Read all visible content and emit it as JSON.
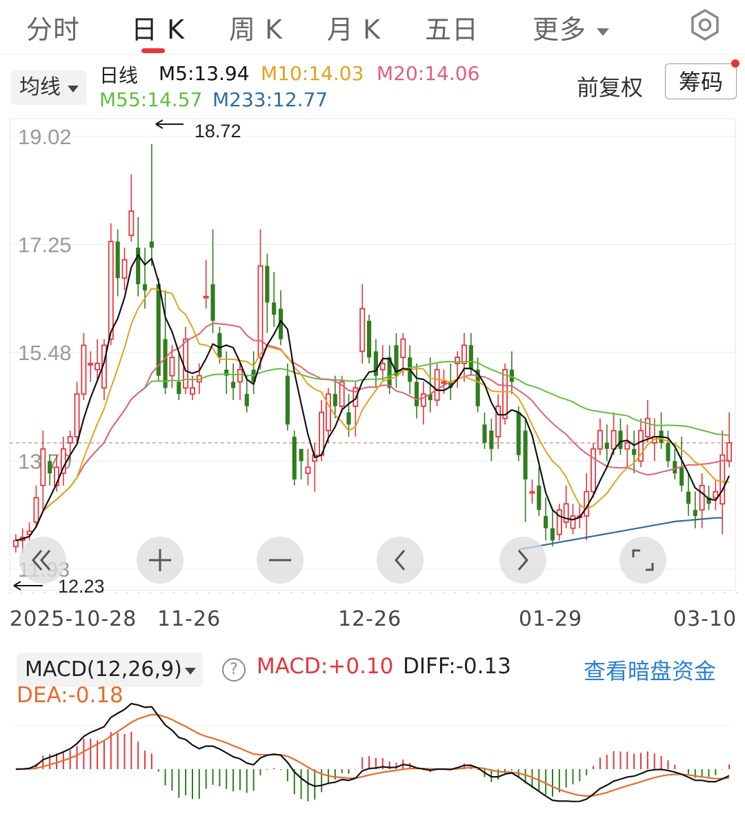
{
  "tabs": [
    {
      "label": "分时"
    },
    {
      "label": "日 K"
    },
    {
      "label": "周 K"
    },
    {
      "label": "月 K"
    },
    {
      "label": "五日"
    },
    {
      "label": "更多"
    }
  ],
  "toolbar": {
    "ma_select": "均线",
    "period": "日线",
    "m5": "M5:13.94",
    "m10": "M10:14.03",
    "m20": "M20:14.06",
    "m55": "M55:14.57",
    "m233": "M233:12.77",
    "adjust": "前复权",
    "chips_button": "筹码"
  },
  "colors": {
    "up": "#e8333a",
    "down": "#2f7d1e",
    "m5": "#111111",
    "m10": "#e3a21a",
    "m20": "#e0607a",
    "m55": "#5fbf3e",
    "m233": "#2d6c9e",
    "dea": "#e86b2c"
  },
  "chart_data": {
    "type": "candlestick",
    "y_ticks": [
      "19.02",
      "17.25",
      "15.48",
      "13.70",
      "11.93"
    ],
    "ylim": [
      11.93,
      19.02
    ],
    "x_ticks": [
      "2025-10-28",
      "11-26",
      "12-26",
      "01-29",
      "03-10"
    ],
    "max_label": "18.72",
    "min_label": "12.23",
    "last_close": 14.0,
    "candles": [
      [
        12.3,
        12.5,
        12.2,
        12.4
      ],
      [
        12.4,
        12.6,
        12.2,
        12.45
      ],
      [
        12.5,
        12.7,
        12.4,
        12.55
      ],
      [
        12.7,
        13.3,
        12.6,
        13.1
      ],
      [
        13.3,
        14.2,
        12.9,
        13.9
      ],
      [
        13.7,
        13.8,
        13.3,
        13.5
      ],
      [
        13.3,
        13.8,
        13.2,
        13.6
      ],
      [
        13.5,
        14.1,
        13.3,
        13.9
      ],
      [
        14.0,
        14.2,
        13.7,
        14.1
      ],
      [
        14.1,
        15.0,
        14.0,
        14.8
      ],
      [
        14.8,
        15.8,
        14.7,
        15.6
      ],
      [
        15.3,
        15.5,
        15.0,
        15.3
      ],
      [
        15.2,
        15.7,
        15.0,
        15.3
      ],
      [
        14.9,
        15.7,
        14.7,
        15.6
      ],
      [
        15.7,
        17.6,
        15.6,
        17.3
      ],
      [
        17.3,
        17.5,
        16.4,
        16.7
      ],
      [
        16.7,
        17.2,
        16.5,
        17.0
      ],
      [
        17.4,
        18.4,
        17.3,
        17.8
      ],
      [
        17.2,
        17.7,
        16.4,
        16.6
      ],
      [
        16.6,
        17.2,
        16.2,
        16.5
      ],
      [
        17.3,
        18.9,
        16.9,
        17.2
      ],
      [
        16.6,
        16.7,
        15.0,
        15.1
      ],
      [
        15.7,
        16.5,
        14.8,
        14.9
      ],
      [
        15.1,
        15.6,
        14.9,
        15.4
      ],
      [
        15.0,
        15.5,
        14.7,
        14.8
      ],
      [
        14.9,
        15.9,
        14.8,
        15.7
      ],
      [
        14.8,
        15.1,
        14.7,
        14.9
      ],
      [
        15.0,
        15.3,
        14.8,
        15.1
      ],
      [
        16.4,
        17.0,
        16.2,
        16.4
      ],
      [
        16.6,
        17.5,
        15.8,
        16.0
      ],
      [
        15.8,
        15.9,
        15.3,
        15.4
      ],
      [
        15.2,
        15.5,
        14.8,
        15.1
      ],
      [
        15.0,
        15.3,
        14.7,
        14.9
      ],
      [
        15.0,
        15.3,
        14.7,
        15.2
      ],
      [
        14.8,
        15.1,
        14.5,
        14.6
      ],
      [
        15.2,
        15.5,
        14.8,
        15.0
      ],
      [
        15.4,
        17.5,
        15.2,
        16.9
      ],
      [
        16.9,
        17.1,
        15.8,
        16.3
      ],
      [
        16.3,
        16.8,
        15.9,
        16.1
      ],
      [
        16.2,
        16.5,
        15.6,
        15.7
      ],
      [
        15.1,
        15.3,
        14.2,
        14.3
      ],
      [
        14.1,
        14.2,
        13.3,
        13.4
      ],
      [
        13.9,
        13.9,
        13.4,
        13.7
      ],
      [
        13.5,
        13.9,
        13.3,
        13.6
      ],
      [
        13.7,
        14.0,
        13.2,
        13.8
      ],
      [
        13.8,
        14.7,
        13.7,
        14.5
      ],
      [
        14.2,
        14.9,
        14.0,
        14.8
      ],
      [
        14.8,
        15.1,
        14.4,
        14.6
      ],
      [
        14.6,
        15.1,
        14.5,
        15.0
      ],
      [
        14.5,
        14.8,
        14.1,
        14.3
      ],
      [
        14.6,
        15.0,
        14.1,
        14.9
      ],
      [
        15.5,
        16.6,
        15.3,
        16.2
      ],
      [
        16.0,
        16.1,
        15.3,
        15.4
      ],
      [
        15.5,
        15.7,
        14.9,
        15.1
      ],
      [
        15.2,
        15.6,
        15.0,
        15.3
      ],
      [
        15.4,
        15.6,
        14.8,
        14.9
      ],
      [
        15.6,
        15.8,
        14.9,
        15.1
      ],
      [
        15.4,
        15.8,
        15.1,
        15.7
      ],
      [
        15.4,
        15.6,
        14.8,
        15.0
      ],
      [
        15.0,
        15.3,
        14.4,
        14.6
      ],
      [
        14.6,
        15.0,
        14.3,
        14.8
      ],
      [
        14.8,
        15.4,
        14.5,
        14.7
      ],
      [
        14.7,
        15.3,
        14.6,
        15.2
      ],
      [
        15.0,
        15.2,
        14.8,
        15.0
      ],
      [
        15.0,
        15.3,
        14.7,
        14.9
      ],
      [
        15.3,
        15.5,
        14.9,
        15.4
      ],
      [
        15.3,
        15.8,
        15.0,
        15.6
      ],
      [
        15.6,
        15.8,
        15.1,
        15.2
      ],
      [
        15.2,
        15.4,
        14.5,
        14.6
      ],
      [
        14.3,
        14.5,
        13.9,
        14.0
      ],
      [
        14.2,
        14.4,
        13.7,
        13.9
      ],
      [
        14.1,
        14.8,
        13.9,
        14.6
      ],
      [
        14.4,
        15.3,
        14.3,
        15.2
      ],
      [
        15.2,
        15.5,
        14.8,
        15.0
      ],
      [
        14.5,
        14.6,
        13.7,
        13.8
      ],
      [
        14.2,
        14.4,
        12.7,
        13.4
      ],
      [
        13.2,
        13.4,
        13.0,
        13.2
      ],
      [
        13.3,
        13.6,
        12.8,
        12.9
      ],
      [
        12.8,
        13.1,
        12.4,
        12.6
      ],
      [
        12.6,
        12.9,
        12.3,
        12.4
      ],
      [
        12.5,
        13.0,
        12.4,
        12.9
      ],
      [
        12.7,
        13.3,
        12.6,
        13.0
      ],
      [
        12.6,
        13.0,
        12.5,
        12.8
      ],
      [
        12.8,
        13.0,
        12.6,
        12.8
      ],
      [
        12.8,
        13.5,
        12.4,
        13.2
      ],
      [
        13.2,
        14.0,
        13.1,
        13.9
      ],
      [
        13.9,
        14.4,
        13.8,
        14.2
      ],
      [
        14.0,
        14.3,
        13.7,
        13.9
      ],
      [
        13.9,
        14.5,
        13.8,
        14.2
      ],
      [
        14.2,
        14.4,
        13.8,
        13.9
      ],
      [
        13.9,
        14.3,
        13.6,
        14.0
      ],
      [
        13.9,
        14.2,
        13.5,
        13.8
      ],
      [
        13.7,
        14.4,
        13.6,
        14.2
      ],
      [
        14.1,
        14.7,
        14.0,
        14.4
      ],
      [
        14.0,
        14.4,
        13.7,
        14.1
      ],
      [
        14.2,
        14.5,
        13.9,
        14.0
      ],
      [
        14.0,
        14.2,
        13.6,
        13.7
      ],
      [
        13.7,
        13.9,
        13.4,
        13.5
      ],
      [
        13.6,
        14.1,
        13.2,
        13.3
      ],
      [
        13.2,
        13.5,
        12.8,
        13.0
      ],
      [
        12.9,
        13.2,
        12.6,
        12.8
      ],
      [
        12.9,
        13.5,
        12.6,
        13.3
      ],
      [
        13.1,
        13.3,
        12.9,
        13.0
      ],
      [
        13.1,
        13.4,
        12.9,
        13.2
      ],
      [
        13.0,
        14.2,
        12.5,
        13.8
      ],
      [
        13.7,
        14.5,
        13.6,
        14.0
      ]
    ],
    "series": [
      {
        "name": "M233",
        "values": [
          null,
          null,
          null,
          null,
          null,
          null,
          null,
          null,
          null,
          null,
          null,
          null,
          null,
          null,
          null,
          null,
          null,
          null,
          null,
          null,
          null,
          null,
          null,
          null,
          null,
          null,
          null,
          null,
          null,
          null,
          null,
          null,
          null,
          null,
          null,
          null,
          null,
          null,
          null,
          null,
          null,
          null,
          null,
          null,
          null,
          null,
          null,
          null,
          null,
          null,
          null,
          null,
          null,
          null,
          null,
          null,
          null,
          null,
          null,
          null,
          null,
          null,
          null,
          null,
          null,
          null,
          null,
          null,
          null,
          null,
          null,
          null,
          null,
          null,
          12.25,
          12.27,
          12.29,
          12.31,
          12.33,
          12.35,
          12.37,
          12.39,
          12.41,
          12.43,
          12.45,
          12.47,
          12.49,
          12.51,
          12.53,
          12.55,
          12.57,
          12.59,
          12.61,
          12.63,
          12.65,
          12.67,
          12.69,
          12.71,
          12.72,
          12.73,
          12.74,
          12.75,
          12.76,
          12.77,
          12.77
        ]
      }
    ],
    "macd": {
      "label": "MACD(12,26,9)",
      "macd_value": "MACD:+0.10",
      "diff_value": "DIFF:-0.13",
      "dea_value": "DEA:-0.18",
      "link_text": "查看暗盘资金"
    }
  }
}
